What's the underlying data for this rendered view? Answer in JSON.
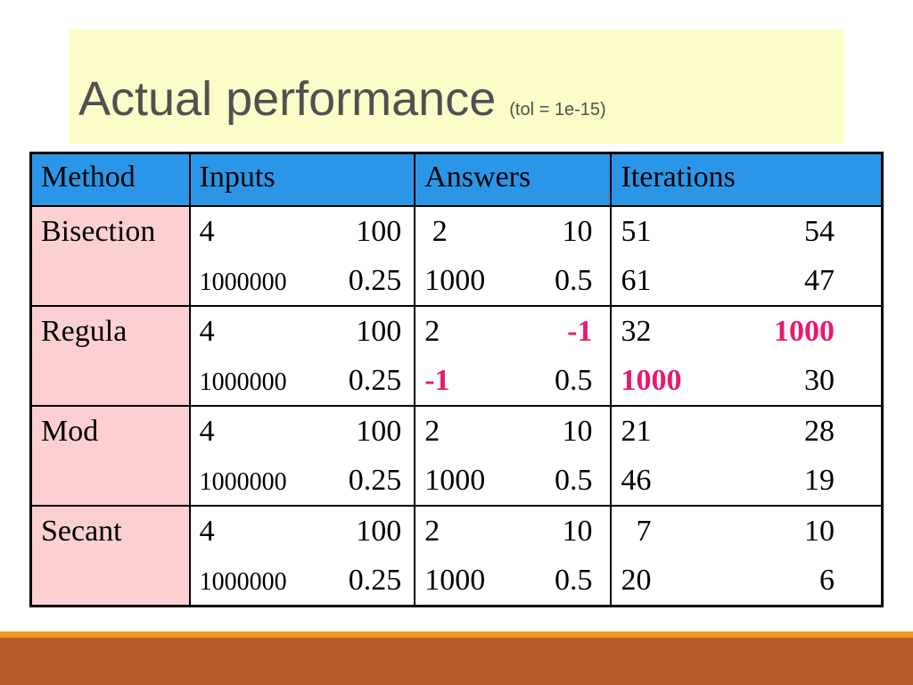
{
  "title": {
    "main": "Actual performance",
    "sub": "(tol = 1e-15)"
  },
  "table": {
    "headers": [
      "Method",
      "Inputs",
      "Answers",
      "Iterations"
    ],
    "rows": [
      {
        "method": "Bisection",
        "inputs": [
          [
            "4",
            "100"
          ],
          [
            "1000000",
            "0.25"
          ]
        ],
        "answers": [
          [
            " 2",
            "10"
          ],
          [
            "1000",
            "0.5"
          ]
        ],
        "iterations": [
          [
            "51",
            "54"
          ],
          [
            "61",
            "47"
          ]
        ]
      },
      {
        "method": "Regula",
        "inputs": [
          [
            "4",
            "100"
          ],
          [
            "1000000",
            "0.25"
          ]
        ],
        "answers": [
          [
            "2",
            "-1"
          ],
          [
            "-1",
            "0.5"
          ]
        ],
        "iterations": [
          [
            "32",
            "1000"
          ],
          [
            "1000",
            "30"
          ]
        ]
      },
      {
        "method": "Mod",
        "inputs": [
          [
            "4",
            "100"
          ],
          [
            "1000000",
            "0.25"
          ]
        ],
        "answers": [
          [
            "2",
            "10"
          ],
          [
            "1000",
            "0.5"
          ]
        ],
        "iterations": [
          [
            "21",
            "28"
          ],
          [
            "46",
            "19"
          ]
        ]
      },
      {
        "method": "Secant",
        "inputs": [
          [
            "4",
            "100"
          ],
          [
            "1000000",
            "0.25"
          ]
        ],
        "answers": [
          [
            "2",
            "10"
          ],
          [
            "1000",
            "0.5"
          ]
        ],
        "iterations": [
          [
            "  7",
            "10"
          ],
          [
            "20",
            "6"
          ]
        ]
      }
    ]
  },
  "colors": {
    "header_bg": "#2b96e8",
    "method_bg": "#fcd0d0",
    "highlight": "#e8196e",
    "title_bg": "#fcfcc8",
    "footer": "#b95a2d",
    "footer_line": "#f0991c"
  }
}
